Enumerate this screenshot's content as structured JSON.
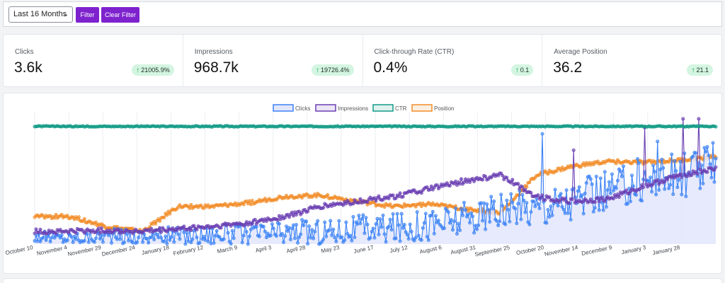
{
  "filters": {
    "range_value": "Last 16 Months",
    "filter_label": "Filter",
    "clear_label": "Clear Filter"
  },
  "stats": [
    {
      "label": "Clicks",
      "value": "3.6k",
      "change": "21005.9%"
    },
    {
      "label": "Impressions",
      "value": "968.7k",
      "change": "19726.4%"
    },
    {
      "label": "Click-through Rate (CTR)",
      "value": "0.4%",
      "change": "0.1"
    },
    {
      "label": "Average Position",
      "value": "36.2",
      "change": "21.1"
    }
  ],
  "colors": {
    "accent": "#7e22ce",
    "badge_bg": "#d3f5e1",
    "badge_arrow": "#16a34a",
    "clicks": "#3b82f6",
    "impressions": "#6b3fb3",
    "ctr": "#129b86",
    "position": "#f28c28"
  },
  "chart_data": {
    "type": "line",
    "legend_placement": "top-center",
    "grid": "vertical",
    "x_tick_labels": [
      "October 10",
      "November 4",
      "November 29",
      "December 24",
      "January 18",
      "February 12",
      "March 9",
      "April 3",
      "April 28",
      "May 23",
      "June 17",
      "July 12",
      "August 6",
      "August 31",
      "September 25",
      "October 20",
      "November 14",
      "December 9",
      "January 3",
      "January 28"
    ],
    "series": [
      {
        "name": "Clicks",
        "color": "#3b82f6",
        "fill": "#e3e6fb",
        "anchors": [
          0.06,
          0.05,
          0.07,
          0.06,
          0.07,
          0.08,
          0.08,
          0.09,
          0.1,
          0.12,
          0.13,
          0.16,
          0.2,
          0.25,
          0.3,
          0.35,
          0.42,
          0.52,
          0.55,
          0.62
        ],
        "noise": 0.07,
        "spikes": [
          [
            0.915,
            0.82
          ],
          [
            0.745,
            0.88
          ],
          [
            0.885,
            0.68
          ]
        ]
      },
      {
        "name": "Impressions",
        "color": "#6b3fb3",
        "anchors": [
          0.1,
          0.1,
          0.11,
          0.1,
          0.12,
          0.14,
          0.17,
          0.22,
          0.3,
          0.34,
          0.38,
          0.44,
          0.5,
          0.55,
          0.38,
          0.34,
          0.36,
          0.46,
          0.55,
          0.6
        ],
        "noise": 0.02,
        "spikes": [
          [
            0.627,
            0.52
          ],
          [
            0.792,
            0.75
          ],
          [
            0.895,
            0.93
          ],
          [
            0.953,
            1.0
          ],
          [
            0.974,
            1.0
          ]
        ]
      },
      {
        "name": "CTR",
        "color": "#129b86",
        "anchors": [
          0.94,
          0.94,
          0.94,
          0.94,
          0.94,
          0.94,
          0.94,
          0.94,
          0.94,
          0.94,
          0.94,
          0.94,
          0.94,
          0.94,
          0.94,
          0.94,
          0.94,
          0.94,
          0.94,
          0.94
        ],
        "noise": 0.004,
        "spikes": []
      },
      {
        "name": "Position",
        "color": "#f28c28",
        "anchors": [
          0.22,
          0.22,
          0.14,
          0.1,
          0.3,
          0.3,
          0.33,
          0.38,
          0.39,
          0.34,
          0.3,
          0.32,
          0.28,
          0.25,
          0.55,
          0.62,
          0.66,
          0.65,
          0.67,
          0.7
        ],
        "noise": 0.015,
        "spikes": []
      }
    ]
  }
}
